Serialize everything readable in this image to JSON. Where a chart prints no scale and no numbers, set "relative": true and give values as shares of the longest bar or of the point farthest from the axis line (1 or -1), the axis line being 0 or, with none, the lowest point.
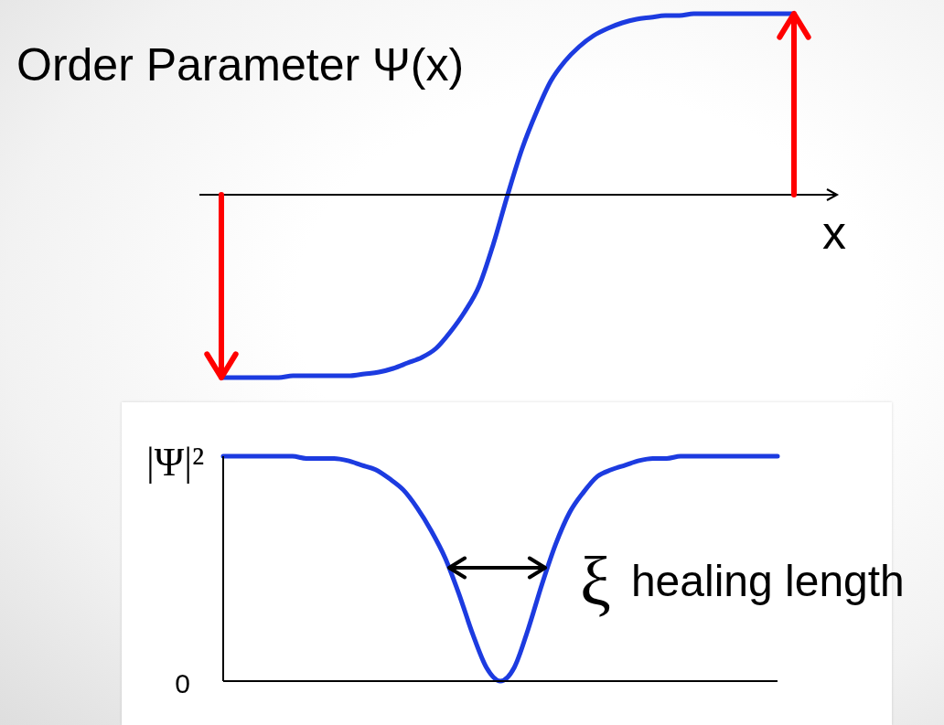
{
  "chart_data": [
    {
      "type": "line",
      "ylabel": "Order Parameter Ψ(x)",
      "xlabel": "x",
      "relative": true,
      "categories": [
        null,
        null,
        null,
        null,
        null,
        null,
        null,
        null,
        null,
        null,
        null,
        null,
        null,
        null,
        null,
        null,
        null,
        null,
        null,
        null,
        null,
        null,
        null,
        null,
        null,
        null,
        null,
        null,
        null,
        null,
        null,
        null,
        null,
        null,
        null,
        null,
        null,
        null,
        null,
        null,
        null
      ],
      "color": "#1c3be0",
      "values": [
        -1,
        -1,
        -1,
        -1,
        -1,
        -0.99,
        -0.99,
        -0.99,
        -0.99,
        -0.99,
        -0.98,
        -0.97,
        -0.95,
        -0.92,
        -0.89,
        -0.84,
        -0.75,
        -0.64,
        -0.5,
        -0.27,
        0,
        0.25,
        0.45,
        0.62,
        0.73,
        0.81,
        0.87,
        0.91,
        0.94,
        0.96,
        0.97,
        0.98,
        0.98,
        0.99,
        0.99,
        0.99,
        0.99,
        0.99,
        0.99,
        0.99,
        0.99
      ]
    },
    {
      "type": "line",
      "ylabel": "|Ψ|²",
      "relative": true,
      "categories": [
        null,
        null,
        null,
        null,
        null,
        null,
        null,
        null,
        null,
        null,
        null,
        null,
        null,
        null,
        null,
        null,
        null,
        null,
        null,
        null,
        null,
        null,
        null,
        null,
        null,
        null,
        null,
        null,
        null,
        null,
        null,
        null,
        null,
        null,
        null,
        null,
        null,
        null,
        null,
        null,
        null
      ],
      "color": "#1c3be0",
      "values": [
        1,
        1,
        1,
        1,
        1,
        1,
        0.99,
        0.99,
        0.99,
        0.98,
        0.96,
        0.94,
        0.9,
        0.85,
        0.77,
        0.67,
        0.55,
        0.39,
        0.21,
        0.06,
        0,
        0.06,
        0.23,
        0.43,
        0.61,
        0.75,
        0.84,
        0.91,
        0.94,
        0.96,
        0.98,
        0.99,
        0.99,
        1,
        1,
        1,
        1,
        1,
        1,
        1,
        1
      ],
      "annotations": [
        "0",
        "ξ",
        "healing length"
      ]
    }
  ]
}
